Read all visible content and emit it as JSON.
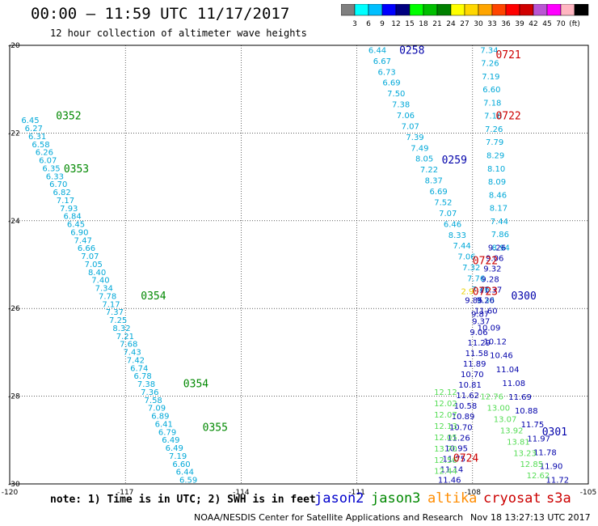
{
  "header": {
    "title": "00:00 – 11:59 UTC 11/17/2017",
    "subtitle": "12 hour collection of altimeter wave heights"
  },
  "legend": {
    "colors": [
      "#7f7f7f",
      "#00ffff",
      "#00bfff",
      "#0000ff",
      "#00007f",
      "#00ff00",
      "#00bf00",
      "#008000",
      "#ffff00",
      "#ffd700",
      "#ffa500",
      "#ff4500",
      "#ff0000",
      "#d00000",
      "#ba55d3",
      "#ff00ff",
      "#ffb6c1",
      "#000000"
    ],
    "ticks": [
      "3",
      "6",
      "9",
      "12",
      "15",
      "18",
      "21",
      "24",
      "27",
      "30",
      "33",
      "36",
      "39",
      "42",
      "45",
      "70",
      "(ft)"
    ]
  },
  "footer": {
    "note": "note: 1) Time is in UTC; 2) SWH is in feet",
    "satellites": [
      {
        "name": "jason2",
        "color": "#0000cc"
      },
      {
        "name": "jason3",
        "color": "#008800"
      },
      {
        "name": "altika",
        "color": "#ff8c00"
      },
      {
        "name": "cryosat",
        "color": "#cc0000"
      },
      {
        "name": "s3a",
        "color": "#cc0000"
      }
    ],
    "credit": "NOAA/NESDIS Center for Satellite Applications and Research",
    "stamp": "Nov 18 13:27:13 UTC 2017"
  },
  "chart_data": {
    "type": "scatter",
    "xlim": [
      -120,
      -105
    ],
    "ylim": [
      -30,
      -20
    ],
    "x_ticks": [
      "-120",
      "-117",
      "-114",
      "-111",
      "-108",
      "-105"
    ],
    "y_ticks": [
      "-20",
      "-22",
      "-24",
      "-26",
      "-28",
      "-30"
    ],
    "tracks": [
      {
        "satellite": "jason3",
        "color": "#00a8d8",
        "start": [
          -119.7,
          -21.7
        ],
        "end": [
          -115.6,
          -29.9
        ],
        "values": [
          "6.45",
          "6.27",
          "6.31",
          "6.58",
          "6.26",
          "6.07",
          "6.35",
          "6.33",
          "6.70",
          "6.82",
          "7.17",
          "7.93",
          "6.84",
          "6.45",
          "6.90",
          "7.47",
          "6.66",
          "7.07",
          "7.05",
          "8.40",
          "7.40",
          "7.34",
          "7.78",
          "7.17",
          "7.37",
          "7.25",
          "8.32",
          "7.21",
          "7.68",
          "7.43",
          "7.42",
          "6.74",
          "6.78",
          "7.38",
          "7.36",
          "7.58",
          "7.09",
          "6.89",
          "6.41",
          "6.79",
          "6.49",
          "6.49",
          "7.19",
          "6.60",
          "6.44",
          "6.59"
        ]
      },
      {
        "satellite": "jason3",
        "color": "#00a8d8",
        "start": [
          -110.7,
          -20.1
        ],
        "end": [
          -107.9,
          -25.8
        ],
        "values": [
          "6.44",
          "6.67",
          "6.73",
          "6.69",
          "7.50",
          "7.38",
          "7.06",
          "7.07",
          "7.39",
          "7.49",
          "8.05",
          "7.22",
          "8.37",
          "6.69",
          "7.52",
          "7.07",
          "6.46",
          "8.33",
          "7.44",
          "7.06",
          "7.32",
          "7.76",
          "7.46",
          "7.30"
        ]
      },
      {
        "satellite": "jason3",
        "color": "#00a8d8",
        "start": [
          -107.8,
          -20.1
        ],
        "end": [
          -107.5,
          -24.6
        ],
        "values": [
          "7.34",
          "7.26",
          "7.19",
          "6.60",
          "7.18",
          "7.16",
          "7.26",
          "7.79",
          "8.29",
          "8.10",
          "8.09",
          "8.46",
          "8.17",
          "7.44",
          "7.86",
          "8.94"
        ]
      },
      {
        "satellite": "jason2",
        "color": "#0000aa",
        "start": [
          -107.6,
          -24.6
        ],
        "end": [
          -108.9,
          -29.9
        ],
        "values": [
          "9.26",
          "9.06",
          "9.32",
          "9.28",
          "11.37",
          "9.26",
          "11.60",
          "9.37",
          "9.06",
          "11.29",
          "11.58",
          "11.89",
          "10.70",
          "10.81",
          "11.62",
          "10.58",
          "10.89",
          "10.70",
          "11.26",
          "10.95",
          "11.75",
          "11.14",
          "11.46"
        ]
      },
      {
        "satellite": "jason2",
        "color": "#0000aa",
        "start": [
          -108.2,
          -25.8
        ],
        "end": [
          -106.1,
          -29.9
        ],
        "values": [
          "9.85",
          "9.87",
          "10.09",
          "10.12",
          "10.46",
          "11.04",
          "11.08",
          "11.69",
          "10.88",
          "11.75",
          "11.97",
          "11.78",
          "11.90",
          "11.72"
        ]
      },
      {
        "satellite": "jason3",
        "color": "#55dd55",
        "start": [
          -107.8,
          -28.0
        ],
        "end": [
          -106.6,
          -29.8
        ],
        "values": [
          "12.76",
          "13.00",
          "13.07",
          "13.92",
          "13.81",
          "13.23",
          "12.85",
          "12.62"
        ]
      },
      {
        "satellite": "jason3",
        "color": "#55dd55",
        "start": [
          -109.0,
          -27.9
        ],
        "end": [
          -109.0,
          -29.7
        ],
        "values": [
          "12.12",
          "12.02",
          "12.07",
          "12.13",
          "12.05",
          "13.70",
          "12.56",
          "12.44"
        ]
      },
      {
        "satellite": "altika",
        "color": "#e8d000",
        "start": [
          -108.3,
          -25.6
        ],
        "end": [
          -108.3,
          -25.7
        ],
        "values": [
          "2.9"
        ]
      }
    ],
    "time_labels": [
      {
        "text": "0352",
        "color": "#008800",
        "x": -118.8,
        "y": -21.6
      },
      {
        "text": "0353",
        "color": "#008800",
        "x": -118.6,
        "y": -22.8
      },
      {
        "text": "0354",
        "color": "#008800",
        "x": -116.6,
        "y": -25.7
      },
      {
        "text": "0354",
        "color": "#008800",
        "x": -115.5,
        "y": -27.7
      },
      {
        "text": "0355",
        "color": "#008800",
        "x": -115.0,
        "y": -28.7
      },
      {
        "text": "0258",
        "color": "#0000aa",
        "x": -109.9,
        "y": -20.1
      },
      {
        "text": "0259",
        "color": "#0000aa",
        "x": -108.8,
        "y": -22.6
      },
      {
        "text": "0300",
        "color": "#0000aa",
        "x": -107.0,
        "y": -25.7
      },
      {
        "text": "0301",
        "color": "#0000aa",
        "x": -106.2,
        "y": -28.8
      },
      {
        "text": "0721",
        "color": "#cc0000",
        "x": -107.4,
        "y": -20.2
      },
      {
        "text": "0722",
        "color": "#cc0000",
        "x": -107.4,
        "y": -21.6
      },
      {
        "text": "0722",
        "color": "#cc0000",
        "x": -108.0,
        "y": -24.9
      },
      {
        "text": "0723",
        "color": "#cc0000",
        "x": -108.0,
        "y": -25.6
      },
      {
        "text": "0724",
        "color": "#cc0000",
        "x": -108.5,
        "y": -29.4
      }
    ]
  }
}
